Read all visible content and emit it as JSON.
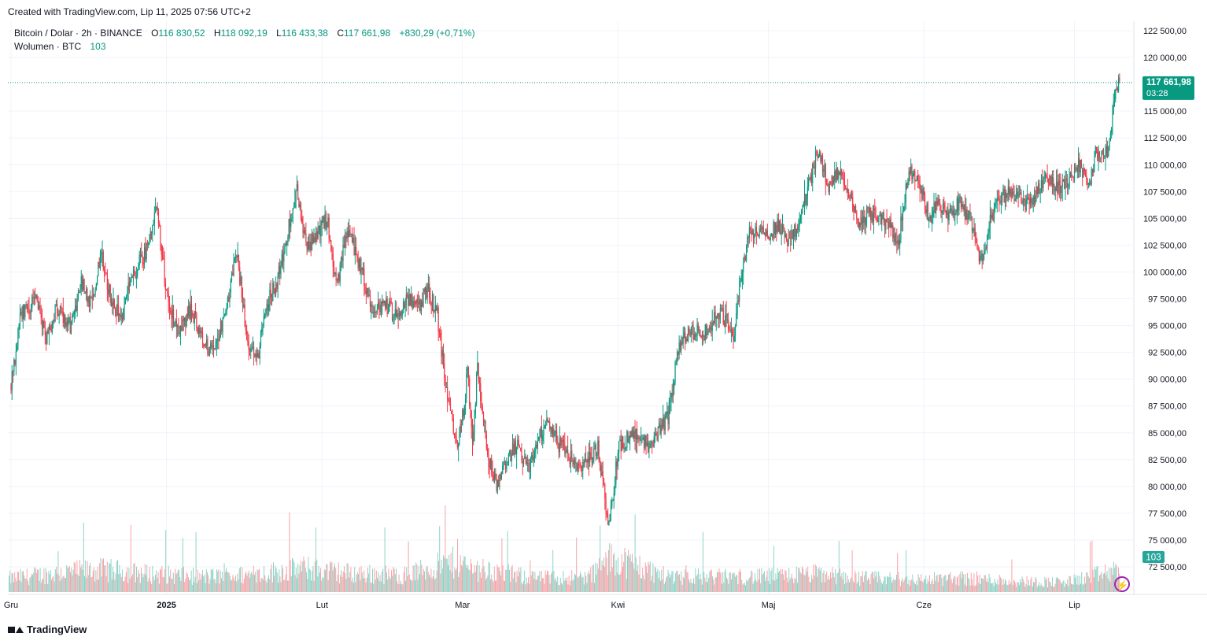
{
  "header": {
    "caption": "Created with TradingView.com, Lip 11, 2025 07:56 UTC+2"
  },
  "legend": {
    "symbol": "Bitcoin / Dolar · 2h · BINANCE",
    "o_label": "O",
    "o_value": "116 830,52",
    "h_label": "H",
    "h_value": "118 092,19",
    "l_label": "L",
    "l_value": "116 433,38",
    "c_label": "C",
    "c_value": "117 661,98",
    "change": "+830,29 (+0,71%)",
    "volume_label": "Wolumen · BTC",
    "volume_value": "103"
  },
  "footer": {
    "brand": "TradingView",
    "bolt": "⚡"
  },
  "colors": {
    "up": "#089981",
    "down": "#f23645",
    "up_vol": "#8fd3c7",
    "down_vol": "#f7a5aa",
    "grid": "#f0f3fa",
    "text": "#131722"
  },
  "chart_data": {
    "type": "candlestick",
    "interval": "2h",
    "ylim": [
      70000,
      123500
    ],
    "y_ticks": [
      {
        "value": 122500,
        "label": "122 500,00"
      },
      {
        "value": 120000,
        "label": "120 000,00"
      },
      {
        "value": 115000,
        "label": "115 000,00"
      },
      {
        "value": 112500,
        "label": "112 500,00"
      },
      {
        "value": 110000,
        "label": "110 000,00"
      },
      {
        "value": 107500,
        "label": "107 500,00"
      },
      {
        "value": 105000,
        "label": "105 000,00"
      },
      {
        "value": 102500,
        "label": "102 500,00"
      },
      {
        "value": 100000,
        "label": "100 000,00"
      },
      {
        "value": 97500,
        "label": "97 500,00"
      },
      {
        "value": 95000,
        "label": "95 000,00"
      },
      {
        "value": 92500,
        "label": "92 500,00"
      },
      {
        "value": 90000,
        "label": "90 000,00"
      },
      {
        "value": 87500,
        "label": "87 500,00"
      },
      {
        "value": 85000,
        "label": "85 000,00"
      },
      {
        "value": 82500,
        "label": "82 500,00"
      },
      {
        "value": 80000,
        "label": "80 000,00"
      },
      {
        "value": 77500,
        "label": "77 500,00"
      },
      {
        "value": 75000,
        "label": "75 000,00"
      },
      {
        "value": 72500,
        "label": "72 500,00"
      }
    ],
    "x_ticks": [
      "Gru",
      "2025",
      "Lut",
      "Mar",
      "Kwi",
      "Maj",
      "Cze",
      "Lip"
    ],
    "tick_days": [
      0,
      31,
      62,
      90,
      121,
      151,
      182,
      212
    ],
    "days_span": 222,
    "last_price": {
      "value": 117661.98,
      "label": "117 661,98",
      "countdown": "03:28"
    },
    "volume_badge": "103",
    "price_path": [
      [
        0,
        89500
      ],
      [
        2,
        96000
      ],
      [
        5,
        97500
      ],
      [
        7,
        93500
      ],
      [
        9,
        96500
      ],
      [
        12,
        95000
      ],
      [
        14,
        99000
      ],
      [
        16,
        97000
      ],
      [
        18,
        101500
      ],
      [
        20,
        97500
      ],
      [
        22,
        95500
      ],
      [
        24,
        99500
      ],
      [
        27,
        102000
      ],
      [
        29,
        106500
      ],
      [
        31,
        98000
      ],
      [
        33,
        94500
      ],
      [
        36,
        96500
      ],
      [
        38,
        94000
      ],
      [
        40,
        92500
      ],
      [
        43,
        96500
      ],
      [
        45,
        102000
      ],
      [
        47,
        94000
      ],
      [
        49,
        91500
      ],
      [
        51,
        97000
      ],
      [
        53,
        99000
      ],
      [
        55,
        103500
      ],
      [
        57,
        107500
      ],
      [
        59,
        102000
      ],
      [
        61,
        103500
      ],
      [
        63,
        105000
      ],
      [
        65,
        98500
      ],
      [
        67,
        104000
      ],
      [
        70,
        100000
      ],
      [
        72,
        96500
      ],
      [
        74,
        97000
      ],
      [
        77,
        96000
      ],
      [
        79,
        97500
      ],
      [
        81,
        96500
      ],
      [
        83,
        98500
      ],
      [
        85,
        96000
      ],
      [
        87,
        88000
      ],
      [
        89,
        84000
      ],
      [
        90,
        86500
      ],
      [
        91,
        90500
      ],
      [
        92,
        84500
      ],
      [
        93,
        91000
      ],
      [
        95,
        83000
      ],
      [
        97,
        80000
      ],
      [
        99,
        82500
      ],
      [
        101,
        84000
      ],
      [
        103,
        81500
      ],
      [
        105,
        84000
      ],
      [
        107,
        86500
      ],
      [
        109,
        84000
      ],
      [
        111,
        83000
      ],
      [
        113,
        81500
      ],
      [
        115,
        82500
      ],
      [
        117,
        83500
      ],
      [
        118,
        80500
      ],
      [
        119,
        76500
      ],
      [
        120,
        79000
      ],
      [
        121,
        83500
      ],
      [
        123,
        84500
      ],
      [
        125,
        85000
      ],
      [
        127,
        84000
      ],
      [
        129,
        85000
      ],
      [
        131,
        86500
      ],
      [
        133,
        93000
      ],
      [
        135,
        94000
      ],
      [
        137,
        94800
      ],
      [
        139,
        94200
      ],
      [
        141,
        96500
      ],
      [
        143,
        95000
      ],
      [
        144,
        94000
      ],
      [
        145,
        97500
      ],
      [
        147,
        103500
      ],
      [
        149,
        104000
      ],
      [
        151,
        103500
      ],
      [
        153,
        104500
      ],
      [
        155,
        103000
      ],
      [
        157,
        104500
      ],
      [
        159,
        108000
      ],
      [
        161,
        111500
      ],
      [
        163,
        108000
      ],
      [
        165,
        109500
      ],
      [
        167,
        107500
      ],
      [
        169,
        104500
      ],
      [
        171,
        105500
      ],
      [
        173,
        105000
      ],
      [
        175,
        104500
      ],
      [
        177,
        103000
      ],
      [
        178,
        106500
      ],
      [
        179,
        109500
      ],
      [
        181,
        108500
      ],
      [
        183,
        105000
      ],
      [
        185,
        106500
      ],
      [
        187,
        105000
      ],
      [
        189,
        106500
      ],
      [
        191,
        105000
      ],
      [
        192,
        104000
      ],
      [
        193,
        101000
      ],
      [
        194,
        101500
      ],
      [
        195,
        104500
      ],
      [
        197,
        107000
      ],
      [
        199,
        107500
      ],
      [
        201,
        107000
      ],
      [
        203,
        106000
      ],
      [
        205,
        108000
      ],
      [
        207,
        108500
      ],
      [
        209,
        108000
      ],
      [
        211,
        108500
      ],
      [
        213,
        110000
      ],
      [
        215,
        108000
      ],
      [
        216,
        111000
      ],
      [
        218,
        110500
      ],
      [
        219,
        112000
      ],
      [
        220,
        116000
      ],
      [
        221,
        117662
      ]
    ],
    "volume_level": [
      [
        0,
        0.2
      ],
      [
        10,
        0.28
      ],
      [
        18,
        0.32
      ],
      [
        28,
        0.26
      ],
      [
        38,
        0.22
      ],
      [
        48,
        0.25
      ],
      [
        58,
        0.34
      ],
      [
        68,
        0.27
      ],
      [
        78,
        0.24
      ],
      [
        88,
        0.42
      ],
      [
        95,
        0.3
      ],
      [
        105,
        0.2
      ],
      [
        115,
        0.22
      ],
      [
        120,
        0.5
      ],
      [
        130,
        0.24
      ],
      [
        140,
        0.22
      ],
      [
        150,
        0.22
      ],
      [
        160,
        0.26
      ],
      [
        170,
        0.2
      ],
      [
        180,
        0.18
      ],
      [
        190,
        0.2
      ],
      [
        200,
        0.16
      ],
      [
        210,
        0.14
      ],
      [
        220,
        0.3
      ]
    ]
  }
}
